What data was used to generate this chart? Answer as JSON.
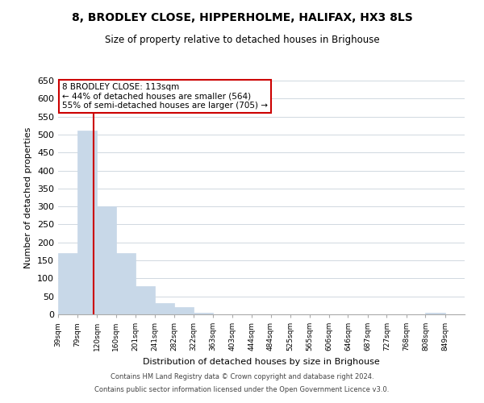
{
  "title": "8, BRODLEY CLOSE, HIPPERHOLME, HALIFAX, HX3 8LS",
  "subtitle": "Size of property relative to detached houses in Brighouse",
  "xlabel": "Distribution of detached houses by size in Brighouse",
  "ylabel": "Number of detached properties",
  "bar_left_edges": [
    39,
    79,
    120,
    160,
    201,
    241,
    282,
    322,
    363,
    403,
    444,
    484,
    525,
    565,
    606,
    646,
    687,
    727,
    768,
    808
  ],
  "bar_widths": [
    40,
    41,
    40,
    41,
    40,
    41,
    40,
    41,
    40,
    41,
    40,
    41,
    40,
    41,
    40,
    41,
    40,
    41,
    40,
    41
  ],
  "bar_heights": [
    170,
    510,
    300,
    170,
    78,
    32,
    20,
    5,
    0,
    0,
    0,
    0,
    0,
    0,
    0,
    0,
    0,
    0,
    0,
    5
  ],
  "bar_color": "#c8d8e8",
  "bar_edgecolor": "#c8d8e8",
  "redline_x": 113,
  "ylim": [
    0,
    650
  ],
  "yticks": [
    0,
    50,
    100,
    150,
    200,
    250,
    300,
    350,
    400,
    450,
    500,
    550,
    600,
    650
  ],
  "xtick_labels": [
    "39sqm",
    "79sqm",
    "120sqm",
    "160sqm",
    "201sqm",
    "241sqm",
    "282sqm",
    "322sqm",
    "363sqm",
    "403sqm",
    "444sqm",
    "484sqm",
    "525sqm",
    "565sqm",
    "606sqm",
    "646sqm",
    "687sqm",
    "727sqm",
    "768sqm",
    "808sqm",
    "849sqm"
  ],
  "annotation_box_text_line1": "8 BRODLEY CLOSE: 113sqm",
  "annotation_box_text_line2": "← 44% of detached houses are smaller (564)",
  "annotation_box_text_line3": "55% of semi-detached houses are larger (705) →",
  "footer_line1": "Contains HM Land Registry data © Crown copyright and database right 2024.",
  "footer_line2": "Contains public sector information licensed under the Open Government Licence v3.0.",
  "bg_color": "#ffffff",
  "grid_color": "#d0d8e0",
  "redline_color": "#cc0000",
  "annotation_box_facecolor": "#ffffff",
  "annotation_box_edgecolor": "#cc0000"
}
